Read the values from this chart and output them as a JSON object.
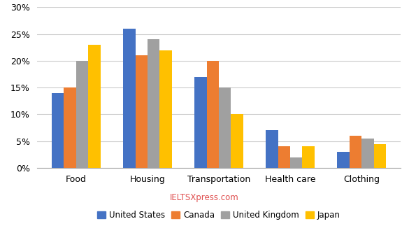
{
  "categories": [
    "Food",
    "Housing",
    "Transportation",
    "Health care",
    "Clothing"
  ],
  "series": {
    "United States": [
      14,
      26,
      17,
      7,
      3
    ],
    "Canada": [
      15,
      21,
      20,
      4,
      6
    ],
    "United Kingdom": [
      20,
      24,
      15,
      2,
      5.5
    ],
    "Japan": [
      23,
      22,
      10,
      4,
      4.5
    ]
  },
  "colors": {
    "United States": "#4472C4",
    "Canada": "#ED7D31",
    "United Kingdom": "#A0A0A0",
    "Japan": "#FFC000"
  },
  "ylim": [
    0,
    30
  ],
  "yticks": [
    0,
    5,
    10,
    15,
    20,
    25,
    30
  ],
  "watermark_text": "IELTSXpress.com",
  "watermark_color": "#E05050",
  "legend_order": [
    "United States",
    "Canada",
    "United Kingdom",
    "Japan"
  ],
  "background_color": "#FFFFFF",
  "grid_color": "#CCCCCC"
}
